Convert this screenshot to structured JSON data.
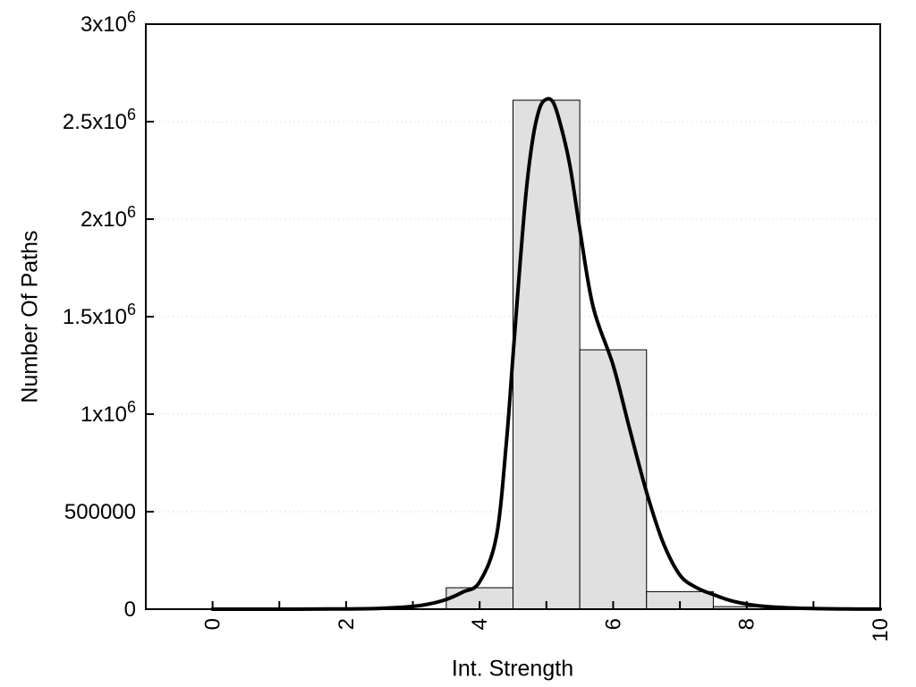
{
  "chart_data": {
    "type": "bar",
    "subtype": "histogram-with-fitted-curve",
    "title": "",
    "xlabel": "Int. Strength",
    "ylabel": "Number Of Paths",
    "xlim": [
      -1,
      10
    ],
    "ylim": [
      0,
      3000000
    ],
    "grid": {
      "axis": "y",
      "style": "dotted",
      "color": "#d8d8d8"
    },
    "frame": {
      "stroke": "#000000",
      "stroke_width": 2,
      "tick_length": 9
    },
    "x_ticks": {
      "major_values": [
        0,
        2,
        4,
        6,
        8,
        10
      ],
      "major_labels": [
        "0",
        "2",
        "4",
        "6",
        "8",
        "10"
      ],
      "minor_values": [
        1,
        3,
        5,
        7,
        9
      ],
      "label_rotation_deg": -90
    },
    "y_ticks": [
      {
        "value": 0,
        "base": "0",
        "sup": ""
      },
      {
        "value": 500000,
        "base": "500000",
        "sup": ""
      },
      {
        "value": 1000000,
        "base": "1x10",
        "sup": "6"
      },
      {
        "value": 1500000,
        "base": "1.5x10",
        "sup": "6"
      },
      {
        "value": 2000000,
        "base": "2x10",
        "sup": "6"
      },
      {
        "value": 2500000,
        "base": "2.5x10",
        "sup": "6"
      },
      {
        "value": 3000000,
        "base": "3x10",
        "sup": "6"
      }
    ],
    "histogram": {
      "bin_width": 1,
      "fill": "#e0e0e0",
      "stroke": "#000000",
      "stroke_width": 1,
      "bins": [
        {
          "center": 4,
          "count": 110000
        },
        {
          "center": 5,
          "count": 2610000
        },
        {
          "center": 6,
          "count": 1330000
        },
        {
          "center": 7,
          "count": 90000
        },
        {
          "center": 8,
          "count": 13000
        }
      ]
    },
    "fit_curve": {
      "color": "#000000",
      "stroke_width": 4,
      "points": [
        [
          0,
          0
        ],
        [
          0.5,
          0
        ],
        [
          1,
          0
        ],
        [
          1.5,
          500
        ],
        [
          2,
          1500
        ],
        [
          2.5,
          4000
        ],
        [
          3,
          14000
        ],
        [
          3.25,
          27000
        ],
        [
          3.5,
          50000
        ],
        [
          3.75,
          88000
        ],
        [
          4,
          140000
        ],
        [
          4.25,
          370000
        ],
        [
          4.4,
          850000
        ],
        [
          4.5,
          1300000
        ],
        [
          4.6,
          1750000
        ],
        [
          4.7,
          2150000
        ],
        [
          4.8,
          2420000
        ],
        [
          4.9,
          2570000
        ],
        [
          5.0,
          2615000
        ],
        [
          5.1,
          2600000
        ],
        [
          5.2,
          2500000
        ],
        [
          5.35,
          2280000
        ],
        [
          5.5,
          1950000
        ],
        [
          5.7,
          1550000
        ],
        [
          6.0,
          1250000
        ],
        [
          6.25,
          920000
        ],
        [
          6.5,
          600000
        ],
        [
          6.75,
          340000
        ],
        [
          7.0,
          175000
        ],
        [
          7.25,
          110000
        ],
        [
          7.5,
          75000
        ],
        [
          7.75,
          45000
        ],
        [
          8.0,
          26000
        ],
        [
          8.25,
          15000
        ],
        [
          8.5,
          9000
        ],
        [
          9.0,
          3000
        ],
        [
          9.5,
          1000
        ],
        [
          10,
          300
        ]
      ]
    }
  }
}
